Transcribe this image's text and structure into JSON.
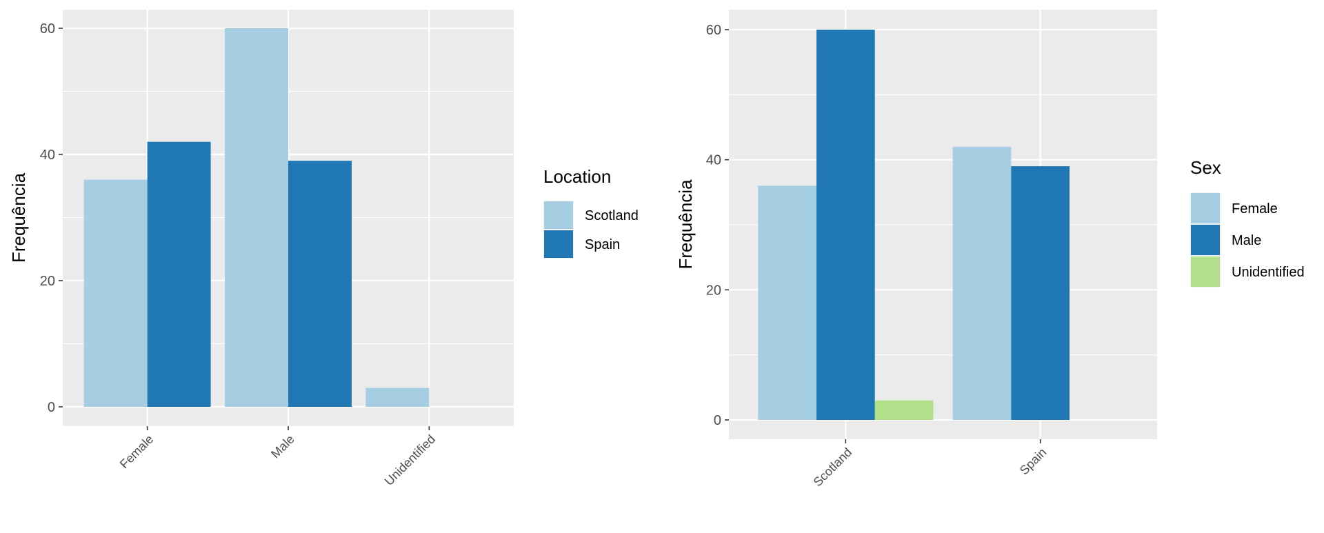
{
  "chart_data": [
    {
      "type": "bar",
      "categories": [
        "Female",
        "Male",
        "Unidentified"
      ],
      "series": [
        {
          "name": "Scotland",
          "color": "#A6CEE3",
          "values": [
            36,
            60,
            3
          ]
        },
        {
          "name": "Spain",
          "color": "#1F78B4",
          "values": [
            42,
            39,
            null
          ]
        }
      ],
      "xlabel": "",
      "ylabel": "Frequência",
      "ylim": [
        0,
        63
      ],
      "yticks": [
        0,
        20,
        40,
        60
      ],
      "legend_title": "Location",
      "legend_position": "right",
      "grid": true,
      "x_tick_rotation": -45
    },
    {
      "type": "bar",
      "categories": [
        "Scotland",
        "Spain"
      ],
      "series": [
        {
          "name": "Female",
          "color": "#A6CEE3",
          "values": [
            36,
            42
          ]
        },
        {
          "name": "Male",
          "color": "#1F78B4",
          "values": [
            60,
            39
          ]
        },
        {
          "name": "Unidentified",
          "color": "#B2DF8A",
          "values": [
            3,
            null
          ]
        }
      ],
      "xlabel": "",
      "ylabel": "Frequência",
      "ylim": [
        0,
        63
      ],
      "yticks": [
        0,
        20,
        40,
        60
      ],
      "legend_title": "Sex",
      "legend_position": "right",
      "grid": true,
      "x_tick_rotation": -45
    }
  ],
  "colors": {
    "panel_background": "#EBEBEB",
    "gridline": "#FFFFFF",
    "axis_text": "#4D4D4D",
    "title_text": "#000000"
  }
}
